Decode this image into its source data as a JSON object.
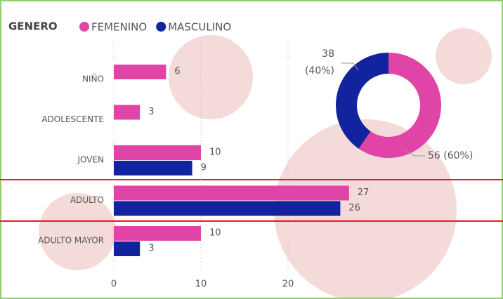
{
  "chart_data": [
    {
      "type": "hbar",
      "legend_title": "GENERO",
      "categories": [
        "NIÑO",
        "ADOLESCENTE",
        "JOVEN",
        "ADULTO",
        "ADULTO MAYOR"
      ],
      "series": [
        {
          "name": "FEMENINO",
          "color": "#e044a7",
          "values": [
            6,
            3,
            10,
            27,
            10
          ]
        },
        {
          "name": "MASCULINO",
          "color": "#12239e",
          "values": [
            null,
            null,
            9,
            26,
            3
          ]
        }
      ],
      "xlim": [
        0,
        30
      ],
      "xticks": [
        0,
        10,
        20
      ],
      "grid": true
    },
    {
      "type": "donut",
      "categories": [
        "MASCULINO",
        "FEMENINO"
      ],
      "values": [
        38,
        56
      ],
      "value_labels": [
        "38 (40%)",
        "56 (60%)"
      ],
      "colors": [
        "#12239e",
        "#e044a7"
      ]
    }
  ]
}
